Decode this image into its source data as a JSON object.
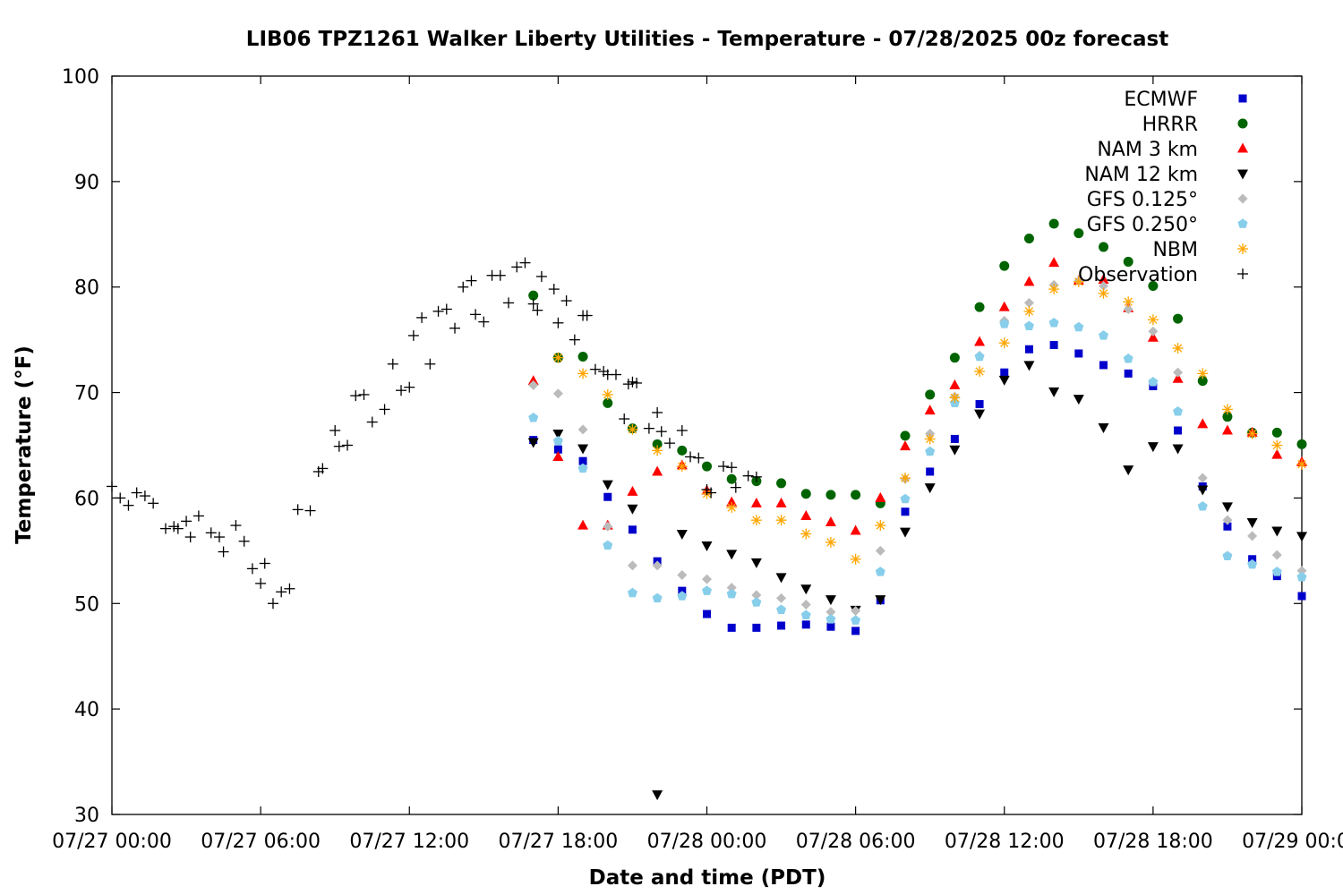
{
  "chart_data": {
    "type": "scatter",
    "title": "LIB06 TPZ1261 Walker Liberty Utilities - Temperature - 07/28/2025 00z forecast",
    "xlabel": "Date and time (PDT)",
    "ylabel": "Temperature (°F)",
    "xlim": [
      "2025-07-27 00:00",
      "2025-07-29 00:00"
    ],
    "ylim": [
      30,
      100
    ],
    "grid": false,
    "legend_position": "top-right",
    "x_ticks": [
      "07/27 00:00",
      "07/27 06:00",
      "07/27 12:00",
      "07/27 18:00",
      "07/28 00:00",
      "07/28 06:00",
      "07/28 12:00",
      "07/28 18:00",
      "07/29 00:00"
    ],
    "y_ticks": [
      "30",
      "40",
      "50",
      "60",
      "70",
      "80",
      "90",
      "100"
    ],
    "series": [
      {
        "name": "ECMWF",
        "color": "#0000cc",
        "marker": "square",
        "x": [
          "2025-07-27 17:00",
          "2025-07-27 18:00",
          "2025-07-27 19:00",
          "2025-07-27 20:00",
          "2025-07-27 21:00",
          "2025-07-27 22:00",
          "2025-07-27 23:00",
          "2025-07-28 00:00",
          "2025-07-28 01:00",
          "2025-07-28 02:00",
          "2025-07-28 03:00",
          "2025-07-28 04:00",
          "2025-07-28 05:00",
          "2025-07-28 06:00",
          "2025-07-28 07:00",
          "2025-07-28 08:00",
          "2025-07-28 09:00",
          "2025-07-28 10:00",
          "2025-07-28 11:00",
          "2025-07-28 12:00",
          "2025-07-28 13:00",
          "2025-07-28 14:00",
          "2025-07-28 15:00",
          "2025-07-28 16:00",
          "2025-07-28 17:00",
          "2025-07-28 18:00",
          "2025-07-28 19:00",
          "2025-07-28 20:00",
          "2025-07-28 21:00",
          "2025-07-28 22:00",
          "2025-07-28 23:00",
          "2025-07-29 00:00"
        ],
        "y": [
          65.5,
          64.6,
          63.5,
          60.1,
          57.0,
          54.0,
          51.2,
          49.0,
          47.7,
          47.7,
          47.9,
          48.0,
          47.8,
          47.4,
          50.3,
          58.7,
          62.5,
          65.6,
          68.9,
          71.9,
          74.1,
          74.5,
          73.7,
          72.6,
          71.8,
          70.6,
          66.4,
          61.1,
          57.3,
          54.2,
          52.6,
          50.7
        ]
      },
      {
        "name": "HRRR",
        "color": "#006400",
        "marker": "circle",
        "x": [
          "2025-07-27 17:00",
          "2025-07-27 18:00",
          "2025-07-27 19:00",
          "2025-07-27 20:00",
          "2025-07-27 21:00",
          "2025-07-27 22:00",
          "2025-07-27 23:00",
          "2025-07-28 00:00",
          "2025-07-28 01:00",
          "2025-07-28 02:00",
          "2025-07-28 03:00",
          "2025-07-28 04:00",
          "2025-07-28 05:00",
          "2025-07-28 06:00",
          "2025-07-28 07:00",
          "2025-07-28 08:00",
          "2025-07-28 09:00",
          "2025-07-28 10:00",
          "2025-07-28 11:00",
          "2025-07-28 12:00",
          "2025-07-28 13:00",
          "2025-07-28 14:00",
          "2025-07-28 15:00",
          "2025-07-28 16:00",
          "2025-07-28 17:00",
          "2025-07-28 18:00",
          "2025-07-28 19:00",
          "2025-07-28 20:00",
          "2025-07-28 21:00",
          "2025-07-28 22:00",
          "2025-07-28 23:00",
          "2025-07-29 00:00"
        ],
        "y": [
          79.2,
          73.3,
          73.4,
          69.0,
          66.6,
          65.1,
          64.5,
          63.0,
          61.8,
          61.6,
          61.4,
          60.4,
          60.3,
          60.3,
          59.5,
          65.9,
          69.8,
          73.3,
          78.1,
          82.0,
          84.6,
          86.0,
          85.1,
          83.8,
          82.4,
          80.1,
          77.0,
          71.1,
          67.7,
          66.2,
          66.2,
          65.1
        ]
      },
      {
        "name": "NAM 3 km",
        "color": "#ff0000",
        "marker": "triangle-up",
        "x": [
          "2025-07-27 17:00",
          "2025-07-27 18:00",
          "2025-07-27 19:00",
          "2025-07-27 20:00",
          "2025-07-27 21:00",
          "2025-07-27 22:00",
          "2025-07-27 23:00",
          "2025-07-28 00:00",
          "2025-07-28 01:00",
          "2025-07-28 02:00",
          "2025-07-28 03:00",
          "2025-07-28 04:00",
          "2025-07-28 05:00",
          "2025-07-28 06:00",
          "2025-07-28 07:00",
          "2025-07-28 08:00",
          "2025-07-28 09:00",
          "2025-07-28 10:00",
          "2025-07-28 11:00",
          "2025-07-28 12:00",
          "2025-07-28 13:00",
          "2025-07-28 14:00",
          "2025-07-28 15:00",
          "2025-07-28 16:00",
          "2025-07-28 17:00",
          "2025-07-28 18:00",
          "2025-07-28 19:00",
          "2025-07-28 20:00",
          "2025-07-28 21:00",
          "2025-07-28 22:00",
          "2025-07-28 23:00",
          "2025-07-29 00:00"
        ],
        "y": [
          71.1,
          63.9,
          57.4,
          57.4,
          60.6,
          62.5,
          63.1,
          60.7,
          59.6,
          59.5,
          59.5,
          58.3,
          57.7,
          56.9,
          60.0,
          64.9,
          68.3,
          70.7,
          74.8,
          78.1,
          80.5,
          82.3,
          80.6,
          80.7,
          78.0,
          75.2,
          71.3,
          67.0,
          66.4,
          66.2,
          64.1,
          63.4
        ]
      },
      {
        "name": "NAM 12 km",
        "color": "#000000",
        "marker": "triangle-down",
        "x": [
          "2025-07-27 17:00",
          "2025-07-27 18:00",
          "2025-07-27 19:00",
          "2025-07-27 20:00",
          "2025-07-27 21:00",
          "2025-07-27 22:00",
          "2025-07-27 23:00",
          "2025-07-28 00:00",
          "2025-07-28 01:00",
          "2025-07-28 02:00",
          "2025-07-28 03:00",
          "2025-07-28 04:00",
          "2025-07-28 05:00",
          "2025-07-28 06:00",
          "2025-07-28 07:00",
          "2025-07-28 08:00",
          "2025-07-28 09:00",
          "2025-07-28 10:00",
          "2025-07-28 11:00",
          "2025-07-28 12:00",
          "2025-07-28 13:00",
          "2025-07-28 14:00",
          "2025-07-28 15:00",
          "2025-07-28 16:00",
          "2025-07-28 17:00",
          "2025-07-28 18:00",
          "2025-07-28 19:00",
          "2025-07-28 20:00",
          "2025-07-28 21:00",
          "2025-07-28 22:00",
          "2025-07-28 23:00",
          "2025-07-29 00:00"
        ],
        "y": [
          65.3,
          66.1,
          64.7,
          61.3,
          59.0,
          31.9,
          56.6,
          55.5,
          54.7,
          53.9,
          52.5,
          51.4,
          50.4,
          49.4,
          50.4,
          56.8,
          61.0,
          64.6,
          68.0,
          71.2,
          72.6,
          70.1,
          69.4,
          66.7,
          62.7,
          64.9,
          64.7,
          60.8,
          59.2,
          57.7,
          56.9,
          56.4
        ]
      },
      {
        "name": "GFS 0.125°",
        "color": "#bbbbbb",
        "marker": "diamond",
        "x": [
          "2025-07-27 17:00",
          "2025-07-27 18:00",
          "2025-07-27 19:00",
          "2025-07-27 20:00",
          "2025-07-27 21:00",
          "2025-07-27 22:00",
          "2025-07-27 23:00",
          "2025-07-28 00:00",
          "2025-07-28 01:00",
          "2025-07-28 02:00",
          "2025-07-28 03:00",
          "2025-07-28 04:00",
          "2025-07-28 05:00",
          "2025-07-28 06:00",
          "2025-07-28 07:00",
          "2025-07-28 08:00",
          "2025-07-28 09:00",
          "2025-07-28 10:00",
          "2025-07-28 11:00",
          "2025-07-28 12:00",
          "2025-07-28 13:00",
          "2025-07-28 14:00",
          "2025-07-28 15:00",
          "2025-07-28 16:00",
          "2025-07-28 17:00",
          "2025-07-28 18:00",
          "2025-07-28 19:00",
          "2025-07-28 20:00",
          "2025-07-28 21:00",
          "2025-07-28 22:00",
          "2025-07-28 23:00",
          "2025-07-29 00:00"
        ],
        "y": [
          70.7,
          69.9,
          66.5,
          57.3,
          53.6,
          53.6,
          52.7,
          52.3,
          51.5,
          50.8,
          50.5,
          49.9,
          49.2,
          49.3,
          55.0,
          61.8,
          66.1,
          69.6,
          73.5,
          76.8,
          78.5,
          80.2,
          80.6,
          80.1,
          77.9,
          75.8,
          71.9,
          61.9,
          57.9,
          56.4,
          54.6,
          53.1
        ]
      },
      {
        "name": "GFS 0.250°",
        "color": "#87ceeb",
        "marker": "pentagon",
        "x": [
          "2025-07-27 17:00",
          "2025-07-27 18:00",
          "2025-07-27 19:00",
          "2025-07-27 20:00",
          "2025-07-27 21:00",
          "2025-07-27 22:00",
          "2025-07-27 23:00",
          "2025-07-28 00:00",
          "2025-07-28 01:00",
          "2025-07-28 02:00",
          "2025-07-28 03:00",
          "2025-07-28 04:00",
          "2025-07-28 05:00",
          "2025-07-28 06:00",
          "2025-07-28 07:00",
          "2025-07-28 08:00",
          "2025-07-28 09:00",
          "2025-07-28 10:00",
          "2025-07-28 11:00",
          "2025-07-28 12:00",
          "2025-07-28 13:00",
          "2025-07-28 14:00",
          "2025-07-28 15:00",
          "2025-07-28 16:00",
          "2025-07-28 17:00",
          "2025-07-28 18:00",
          "2025-07-28 19:00",
          "2025-07-28 20:00",
          "2025-07-28 21:00",
          "2025-07-28 22:00",
          "2025-07-28 23:00",
          "2025-07-29 00:00"
        ],
        "y": [
          67.6,
          65.4,
          62.8,
          55.5,
          51.0,
          50.5,
          50.7,
          51.2,
          50.9,
          50.1,
          49.4,
          48.9,
          48.5,
          48.4,
          53.0,
          59.9,
          64.4,
          69.0,
          73.4,
          76.5,
          76.3,
          76.6,
          76.2,
          75.4,
          73.2,
          71.0,
          68.2,
          59.2,
          54.5,
          53.7,
          53.0,
          52.5
        ]
      },
      {
        "name": "NBM",
        "color": "#ffa500",
        "marker": "asterisk",
        "x": [
          "2025-07-27 18:00",
          "2025-07-27 19:00",
          "2025-07-27 20:00",
          "2025-07-27 21:00",
          "2025-07-27 22:00",
          "2025-07-27 23:00",
          "2025-07-28 00:00",
          "2025-07-28 01:00",
          "2025-07-28 02:00",
          "2025-07-28 03:00",
          "2025-07-28 04:00",
          "2025-07-28 05:00",
          "2025-07-28 06:00",
          "2025-07-28 07:00",
          "2025-07-28 08:00",
          "2025-07-28 09:00",
          "2025-07-28 10:00",
          "2025-07-28 11:00",
          "2025-07-28 12:00",
          "2025-07-28 13:00",
          "2025-07-28 14:00",
          "2025-07-28 15:00",
          "2025-07-28 16:00",
          "2025-07-28 17:00",
          "2025-07-28 18:00",
          "2025-07-28 19:00",
          "2025-07-28 20:00",
          "2025-07-28 21:00",
          "2025-07-28 22:00",
          "2025-07-28 23:00",
          "2025-07-29 00:00"
        ],
        "y": [
          73.3,
          71.8,
          69.8,
          66.5,
          64.5,
          63.0,
          60.4,
          59.1,
          57.9,
          57.9,
          56.6,
          55.8,
          54.2,
          57.4,
          61.9,
          65.6,
          69.5,
          72.0,
          74.7,
          77.7,
          79.8,
          80.5,
          79.4,
          78.6,
          76.9,
          74.2,
          71.8,
          68.4,
          66.1,
          65.0,
          63.2
        ]
      },
      {
        "name": "Observation",
        "color": "#000000",
        "marker": "plus",
        "x": [
          "2025-07-27 00:00",
          "2025-07-27 00:20",
          "2025-07-27 00:40",
          "2025-07-27 01:00",
          "2025-07-27 01:20",
          "2025-07-27 01:40",
          "2025-07-27 02:10",
          "2025-07-27 02:30",
          "2025-07-27 02:40",
          "2025-07-27 03:00",
          "2025-07-27 03:10",
          "2025-07-27 03:30",
          "2025-07-27 04:00",
          "2025-07-27 04:20",
          "2025-07-27 04:30",
          "2025-07-27 05:00",
          "2025-07-27 05:20",
          "2025-07-27 05:40",
          "2025-07-27 06:00",
          "2025-07-27 06:10",
          "2025-07-27 06:30",
          "2025-07-27 06:50",
          "2025-07-27 07:10",
          "2025-07-27 07:30",
          "2025-07-27 08:00",
          "2025-07-27 08:20",
          "2025-07-27 08:30",
          "2025-07-27 09:00",
          "2025-07-27 09:10",
          "2025-07-27 09:30",
          "2025-07-27 09:50",
          "2025-07-27 10:10",
          "2025-07-27 10:30",
          "2025-07-27 11:00",
          "2025-07-27 11:20",
          "2025-07-27 11:40",
          "2025-07-27 12:00",
          "2025-07-27 12:10",
          "2025-07-27 12:30",
          "2025-07-27 12:50",
          "2025-07-27 13:10",
          "2025-07-27 13:30",
          "2025-07-27 13:50",
          "2025-07-27 14:10",
          "2025-07-27 14:30",
          "2025-07-27 14:40",
          "2025-07-27 15:00",
          "2025-07-27 15:20",
          "2025-07-27 15:40",
          "2025-07-27 16:00",
          "2025-07-27 16:20",
          "2025-07-27 16:40",
          "2025-07-27 17:00",
          "2025-07-27 17:10",
          "2025-07-27 17:20",
          "2025-07-27 17:50",
          "2025-07-27 18:00",
          "2025-07-27 18:20",
          "2025-07-27 18:40",
          "2025-07-27 19:00",
          "2025-07-27 19:10",
          "2025-07-27 19:30",
          "2025-07-27 19:50",
          "2025-07-27 20:00",
          "2025-07-27 20:20",
          "2025-07-27 20:40",
          "2025-07-27 20:50",
          "2025-07-27 21:00",
          "2025-07-27 21:10",
          "2025-07-27 21:40",
          "2025-07-27 22:00",
          "2025-07-27 22:10",
          "2025-07-27 22:30",
          "2025-07-27 23:00",
          "2025-07-27 23:20",
          "2025-07-27 23:40",
          "2025-07-28 00:00",
          "2025-07-28 00:10",
          "2025-07-28 00:40",
          "2025-07-28 01:00",
          "2025-07-28 01:10",
          "2025-07-28 01:40",
          "2025-07-28 02:00"
        ],
        "y": [
          61.1,
          60.0,
          59.3,
          60.5,
          60.2,
          59.5,
          57.1,
          57.3,
          57.1,
          57.8,
          56.3,
          58.3,
          56.7,
          56.3,
          54.9,
          57.4,
          55.9,
          53.3,
          51.9,
          53.8,
          50.0,
          51.1,
          51.4,
          58.9,
          58.8,
          62.5,
          62.8,
          66.4,
          64.9,
          65.0,
          69.7,
          69.8,
          67.2,
          68.4,
          72.7,
          70.2,
          70.5,
          75.4,
          77.1,
          72.7,
          77.7,
          77.9,
          76.1,
          80.0,
          80.6,
          77.4,
          76.7,
          81.1,
          81.1,
          78.5,
          81.9,
          82.3,
          78.4,
          77.8,
          81.0,
          79.8,
          76.6,
          78.7,
          75.0,
          77.3,
          77.3,
          72.2,
          72.0,
          71.7,
          71.7,
          67.5,
          70.8,
          71.0,
          70.9,
          66.6,
          68.1,
          66.3,
          65.2,
          66.4,
          63.9,
          63.8,
          60.8,
          60.5,
          63.0,
          62.9,
          61.0,
          62.1,
          62.0
        ]
      }
    ]
  }
}
